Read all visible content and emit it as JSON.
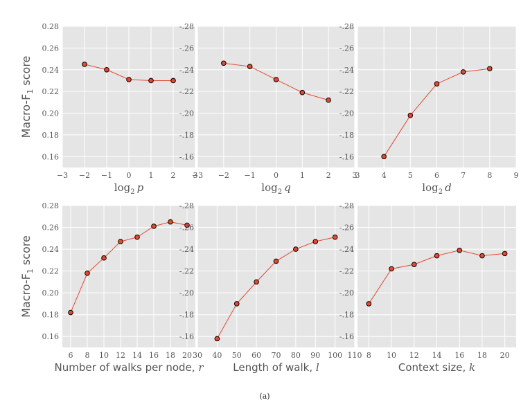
{
  "caption": "(a)",
  "colors": {
    "background": "#e5e5e5",
    "grid": "#ffffff",
    "line": "#e24a33",
    "marker_fill": "#e24a33",
    "marker_edge": "#000000",
    "text": "#555555"
  },
  "chart_data": [
    {
      "type": "line",
      "title": "",
      "xlabel": "log2 p",
      "xlabel_main": "log",
      "xlabel_sub": "2",
      "xlabel_var": "p",
      "ylabel": "Macro-F1 score",
      "xlim": [
        -3,
        3
      ],
      "ylim": [
        0.15,
        0.28
      ],
      "xticks": [
        -3,
        -2,
        -1,
        0,
        1,
        2,
        3
      ],
      "xtick_labels": [
        "−3",
        "−2",
        "−1",
        "0",
        "1",
        "2",
        "3"
      ],
      "yticks": [
        0.16,
        0.18,
        0.2,
        0.22,
        0.24,
        0.26,
        0.28
      ],
      "ytick_labels": [
        "0.16",
        "0.18",
        "0.20",
        "0.22",
        "0.24",
        "0.26",
        "0.28"
      ],
      "x": [
        -2,
        -1,
        0,
        1,
        2
      ],
      "y": [
        0.245,
        0.24,
        0.231,
        0.23,
        0.23
      ]
    },
    {
      "type": "line",
      "title": "",
      "xlabel": "log2 q",
      "xlabel_main": "log",
      "xlabel_sub": "2",
      "xlabel_var": "q",
      "ylabel": "",
      "xlim": [
        -3,
        3
      ],
      "ylim": [
        0.15,
        0.28
      ],
      "xticks": [
        -3,
        -2,
        -1,
        0,
        1,
        2,
        3
      ],
      "xtick_labels": [
        "−3",
        "−2",
        "−1",
        "0",
        "1",
        "2",
        "3"
      ],
      "yticks": [
        0.16,
        0.18,
        0.2,
        0.22,
        0.24,
        0.26,
        0.28
      ],
      "ytick_labels": [
        "-.16",
        "-.18",
        "-.20",
        "-.22",
        "-.24",
        "-.26",
        "-.28"
      ],
      "x": [
        -2,
        -1,
        0,
        1,
        2
      ],
      "y": [
        0.246,
        0.243,
        0.231,
        0.219,
        0.212
      ]
    },
    {
      "type": "line",
      "title": "",
      "xlabel": "log2 d",
      "xlabel_main": "log",
      "xlabel_sub": "2",
      "xlabel_var": "d",
      "ylabel": "",
      "xlim": [
        3,
        9
      ],
      "ylim": [
        0.15,
        0.28
      ],
      "xticks": [
        3,
        4,
        5,
        6,
        7,
        8,
        9
      ],
      "xtick_labels": [
        "3",
        "4",
        "5",
        "6",
        "7",
        "8",
        "9"
      ],
      "yticks": [
        0.16,
        0.18,
        0.2,
        0.22,
        0.24,
        0.26,
        0.28
      ],
      "ytick_labels": [
        "-.16",
        "-.18",
        "-.20",
        "-.22",
        "-.24",
        "-.26",
        "-.28"
      ],
      "x": [
        4,
        5,
        6,
        7,
        8
      ],
      "y": [
        0.16,
        0.198,
        0.227,
        0.238,
        0.241
      ]
    },
    {
      "type": "line",
      "title": "",
      "xlabel": "Number of walks per node, r",
      "xlabel_main": "Number of walks per node, ",
      "xlabel_sub": "",
      "xlabel_var": "r",
      "ylabel": "Macro-F1 score",
      "xlim": [
        5,
        21
      ],
      "ylim": [
        0.15,
        0.28
      ],
      "xticks": [
        6,
        8,
        10,
        12,
        14,
        16,
        18,
        20
      ],
      "xtick_labels": [
        "6",
        "8",
        "10",
        "12",
        "14",
        "16",
        "18",
        "20"
      ],
      "yticks": [
        0.16,
        0.18,
        0.2,
        0.22,
        0.24,
        0.26,
        0.28
      ],
      "ytick_labels": [
        "0.16",
        "0.18",
        "0.20",
        "0.22",
        "0.24",
        "0.26",
        "0.28"
      ],
      "x": [
        6,
        8,
        10,
        12,
        14,
        16,
        18,
        20
      ],
      "y": [
        0.182,
        0.218,
        0.232,
        0.247,
        0.251,
        0.261,
        0.265,
        0.262
      ]
    },
    {
      "type": "line",
      "title": "",
      "xlabel": "Length of walk, l",
      "xlabel_main": "Length of walk, ",
      "xlabel_sub": "",
      "xlabel_var": "l",
      "ylabel": "",
      "xlim": [
        30,
        110
      ],
      "ylim": [
        0.15,
        0.28
      ],
      "xticks": [
        30,
        40,
        50,
        60,
        70,
        80,
        90,
        100,
        110
      ],
      "xtick_labels": [
        "30",
        "40",
        "50",
        "60",
        "70",
        "80",
        "90",
        "100",
        "110"
      ],
      "yticks": [
        0.16,
        0.18,
        0.2,
        0.22,
        0.24,
        0.26,
        0.28
      ],
      "ytick_labels": [
        "-.16",
        "-.18",
        "-.20",
        "-.22",
        "-.24",
        "-.26",
        "-.28"
      ],
      "x": [
        40,
        50,
        60,
        70,
        80,
        90,
        100
      ],
      "y": [
        0.158,
        0.19,
        0.21,
        0.229,
        0.24,
        0.247,
        0.251
      ]
    },
    {
      "type": "line",
      "title": "",
      "xlabel": "Context size, k",
      "xlabel_main": "Context size, ",
      "xlabel_sub": "",
      "xlabel_var": "k",
      "ylabel": "",
      "xlim": [
        7,
        21
      ],
      "ylim": [
        0.15,
        0.28
      ],
      "xticks": [
        8,
        10,
        12,
        14,
        16,
        18,
        20
      ],
      "xtick_labels": [
        "8",
        "10",
        "12",
        "14",
        "16",
        "18",
        "20"
      ],
      "yticks": [
        0.16,
        0.18,
        0.2,
        0.22,
        0.24,
        0.26,
        0.28
      ],
      "ytick_labels": [
        "-.16",
        "-.18",
        "-.20",
        "-.22",
        "-.24",
        "-.26",
        "-.28"
      ],
      "x": [
        8,
        10,
        12,
        14,
        16,
        18,
        20
      ],
      "y": [
        0.19,
        0.222,
        0.226,
        0.234,
        0.239,
        0.234,
        0.236
      ]
    }
  ]
}
